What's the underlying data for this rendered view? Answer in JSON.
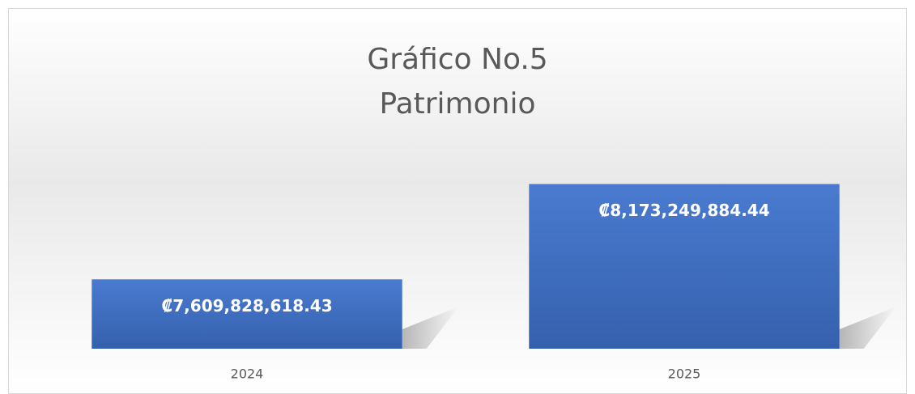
{
  "chart_data": {
    "type": "bar",
    "title": [
      "Gráfico No.5",
      "Patrimonio"
    ],
    "categories": [
      "2024",
      "2025"
    ],
    "values": [
      7609828618.43,
      8173249884.44
    ],
    "value_labels": [
      "₡7,609,828,618.43",
      "₡8,173,249,884.44"
    ],
    "color": "#4472c4",
    "ylim": [
      7200000000,
      8400000000
    ]
  }
}
